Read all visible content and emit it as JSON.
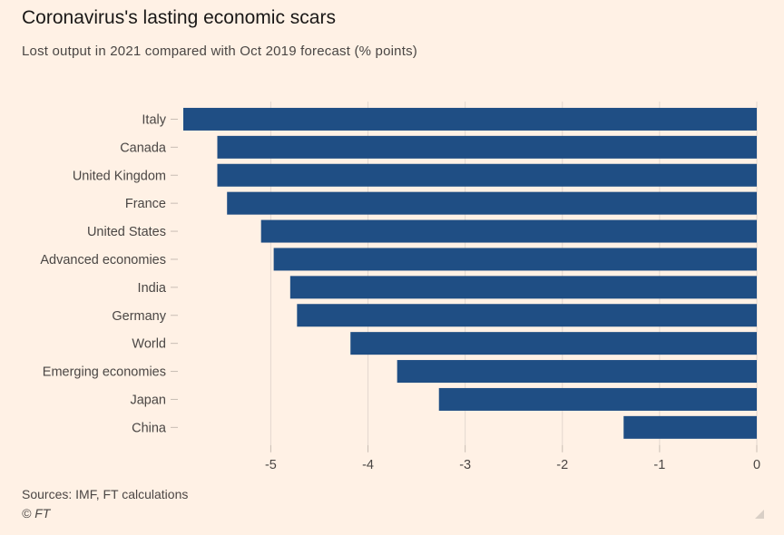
{
  "header": {
    "title": "Coronavirus's lasting economic scars",
    "subtitle": "Lost output in 2021 compared with Oct 2019 forecast (% points)"
  },
  "footer": {
    "source": "Sources: IMF, FT calculations",
    "copyright": "© FT"
  },
  "colors": {
    "bar": "#1f4e84",
    "background": "#fff1e5",
    "grid": "#e3d8cf",
    "tick": "#c8bdb4"
  },
  "chart_data": {
    "type": "bar",
    "orientation": "horizontal",
    "title": "Coronavirus's lasting economic scars",
    "subtitle": "Lost output in 2021 compared with Oct 2019 forecast (% points)",
    "categories": [
      "Italy",
      "Canada",
      "United Kingdom",
      "France",
      "United States",
      "Advanced economies",
      "India",
      "Germany",
      "World",
      "Emerging economies",
      "Japan",
      "China"
    ],
    "values": [
      -5.9,
      -5.55,
      -5.55,
      -5.45,
      -5.1,
      -4.97,
      -4.8,
      -4.73,
      -4.18,
      -3.7,
      -3.27,
      -1.37
    ],
    "xlim": [
      -5.9,
      0
    ],
    "xticks": [
      -5,
      -4,
      -3,
      -2,
      -1,
      0
    ],
    "xtick_labels": [
      "-5",
      "-4",
      "-3",
      "-2",
      "-1",
      "0"
    ],
    "grid": true,
    "legend": "none"
  }
}
